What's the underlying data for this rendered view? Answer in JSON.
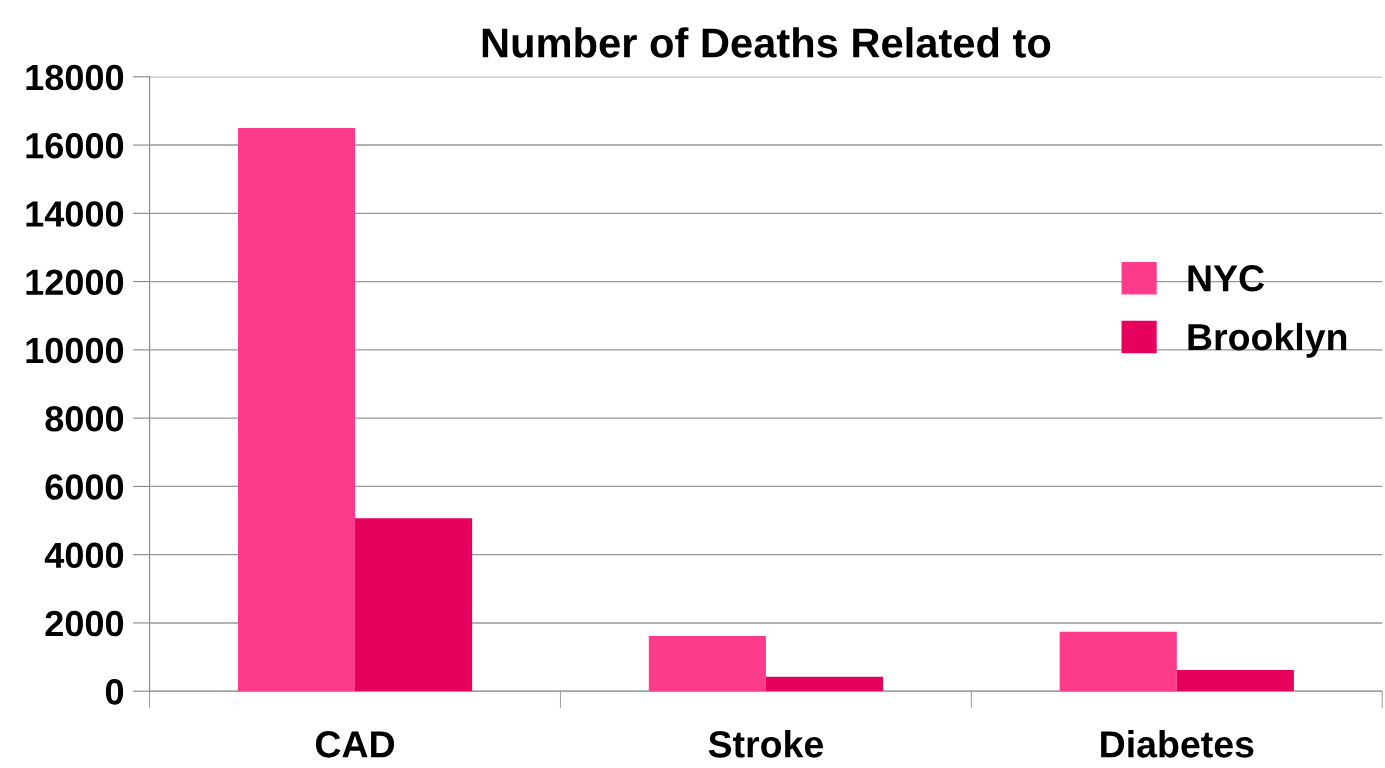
{
  "chart_data": {
    "type": "bar",
    "title": "Number of Deaths Related to",
    "categories": [
      "CAD",
      "Stroke",
      "Diabetes"
    ],
    "series": [
      {
        "name": "NYC",
        "color": "#fe3a8a",
        "values": [
          16500,
          1620,
          1740
        ]
      },
      {
        "name": "Brooklyn",
        "color": "#e4005c",
        "values": [
          5070,
          420,
          620
        ]
      }
    ],
    "ylim": [
      0,
      18000
    ],
    "yticks": [
      0,
      2000,
      4000,
      6000,
      8000,
      10000,
      12000,
      14000,
      16000,
      18000
    ],
    "grid": "y",
    "legend": "right"
  }
}
